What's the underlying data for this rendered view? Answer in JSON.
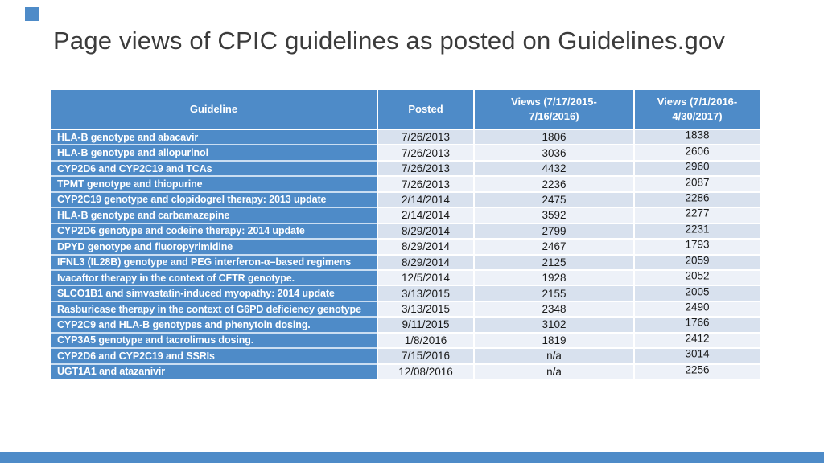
{
  "slide": {
    "title": "Page views of CPIC guidelines as posted on Guidelines.gov",
    "accent_color": "#4e8bc8",
    "band_dark_color": "#d8e1ee",
    "band_light_color": "#edf1f8",
    "header_text_color": "#ffffff"
  },
  "table": {
    "columns": {
      "guideline": "Guideline",
      "posted": "Posted",
      "views_2015_2016": "Views (7/17/2015-\n7/16/2016)",
      "views_2016_2017": "Views (7/1/2016-\n4/30/2017)"
    },
    "rows": [
      {
        "guideline": "HLA-B genotype and abacavir",
        "posted": "7/26/2013",
        "views_2015_2016": "1806",
        "views_2016_2017": "1838"
      },
      {
        "guideline": "HLA-B genotype and allopurinol",
        "posted": "7/26/2013",
        "views_2015_2016": "3036",
        "views_2016_2017": "2606"
      },
      {
        "guideline": "CYP2D6 and CYP2C19 and TCAs",
        "posted": "7/26/2013",
        "views_2015_2016": "4432",
        "views_2016_2017": "2960"
      },
      {
        "guideline": "TPMT genotype and thiopurine",
        "posted": "7/26/2013",
        "views_2015_2016": "2236",
        "views_2016_2017": "2087"
      },
      {
        "guideline": "CYP2C19 genotype and clopidogrel therapy: 2013 update",
        "posted": "2/14/2014",
        "views_2015_2016": "2475",
        "views_2016_2017": "2286"
      },
      {
        "guideline": "HLA-B genotype and carbamazepine",
        "posted": "2/14/2014",
        "views_2015_2016": "3592",
        "views_2016_2017": "2277"
      },
      {
        "guideline": "CYP2D6 genotype and codeine therapy: 2014 update",
        "posted": "8/29/2014",
        "views_2015_2016": "2799",
        "views_2016_2017": "2231"
      },
      {
        "guideline": "DPYD genotype and fluoropyrimidine",
        "posted": "8/29/2014",
        "views_2015_2016": "2467",
        "views_2016_2017": "1793"
      },
      {
        "guideline": "IFNL3 (IL28B) genotype and PEG interferon-α–based regimens",
        "posted": "8/29/2014",
        "views_2015_2016": "2125",
        "views_2016_2017": "2059"
      },
      {
        "guideline": "Ivacaftor therapy in the context of CFTR genotype.",
        "posted": "12/5/2014",
        "views_2015_2016": "1928",
        "views_2016_2017": "2052"
      },
      {
        "guideline": "SLCO1B1 and simvastatin-induced myopathy: 2014 update",
        "posted": "3/13/2015",
        "views_2015_2016": "2155",
        "views_2016_2017": "2005"
      },
      {
        "guideline": "Rasburicase therapy in the context of G6PD deficiency genotype",
        "posted": "3/13/2015",
        "views_2015_2016": "2348",
        "views_2016_2017": "2490"
      },
      {
        "guideline": "CYP2C9 and HLA-B genotypes and phenytoin dosing.",
        "posted": "9/11/2015",
        "views_2015_2016": "3102",
        "views_2016_2017": "1766"
      },
      {
        "guideline": "CYP3A5 genotype and tacrolimus dosing.",
        "posted": "1/8/2016",
        "views_2015_2016": "1819",
        "views_2016_2017": "2412"
      },
      {
        "guideline": "CYP2D6 and CYP2C19 and SSRIs",
        "posted": "7/15/2016",
        "views_2015_2016": "n/a",
        "views_2016_2017": "3014"
      },
      {
        "guideline": "UGT1A1 and atazanivir",
        "posted": "12/08/2016",
        "views_2015_2016": "n/a",
        "views_2016_2017": "2256"
      }
    ]
  }
}
